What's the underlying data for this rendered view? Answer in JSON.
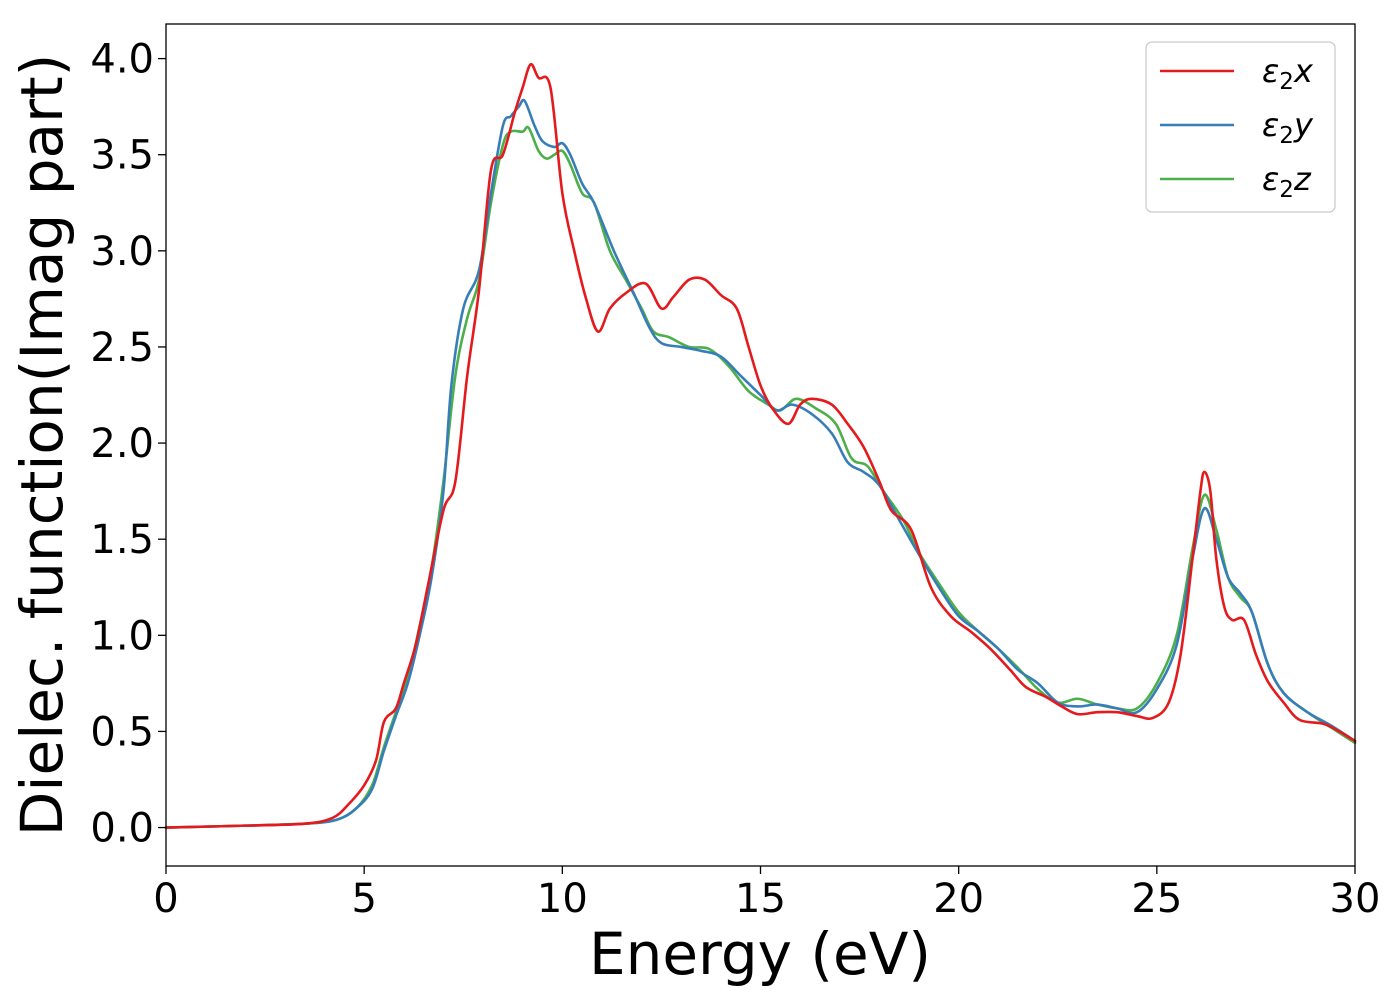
{
  "chart_data": {
    "type": "line",
    "title": "",
    "xlabel": "Energy (eV)",
    "ylabel": "Dielec. function(Imag part)",
    "xlim": [
      0,
      30
    ],
    "ylim": [
      -0.2,
      4.18
    ],
    "xticks": [
      0,
      5,
      10,
      15,
      20,
      25,
      30
    ],
    "yticks": [
      0.0,
      0.5,
      1.0,
      1.5,
      2.0,
      2.5,
      3.0,
      3.5,
      4.0
    ],
    "xtick_labels": [
      "0",
      "5",
      "10",
      "15",
      "20",
      "25",
      "30"
    ],
    "ytick_labels": [
      "0.0",
      "0.5",
      "1.0",
      "1.5",
      "2.0",
      "2.5",
      "3.0",
      "3.5",
      "4.0"
    ],
    "grid": false,
    "legend_position": "top-right",
    "series": [
      {
        "name": "ε2x",
        "color": "#e41a1c",
        "points": [
          [
            0,
            0
          ],
          [
            2,
            0.01
          ],
          [
            3.5,
            0.02
          ],
          [
            4.2,
            0.05
          ],
          [
            4.6,
            0.12
          ],
          [
            5,
            0.22
          ],
          [
            5.3,
            0.35
          ],
          [
            5.5,
            0.55
          ],
          [
            5.8,
            0.62
          ],
          [
            6,
            0.75
          ],
          [
            6.3,
            0.95
          ],
          [
            6.6,
            1.25
          ],
          [
            7,
            1.65
          ],
          [
            7.3,
            1.8
          ],
          [
            7.6,
            2.35
          ],
          [
            7.9,
            2.8
          ],
          [
            8.2,
            3.42
          ],
          [
            8.5,
            3.5
          ],
          [
            8.8,
            3.72
          ],
          [
            9,
            3.85
          ],
          [
            9.2,
            3.97
          ],
          [
            9.4,
            3.9
          ],
          [
            9.7,
            3.85
          ],
          [
            10,
            3.3
          ],
          [
            10.3,
            3.0
          ],
          [
            10.6,
            2.75
          ],
          [
            10.9,
            2.58
          ],
          [
            11.2,
            2.7
          ],
          [
            11.6,
            2.78
          ],
          [
            12.1,
            2.83
          ],
          [
            12.5,
            2.7
          ],
          [
            12.8,
            2.76
          ],
          [
            13.2,
            2.85
          ],
          [
            13.6,
            2.85
          ],
          [
            14,
            2.77
          ],
          [
            14.4,
            2.7
          ],
          [
            14.7,
            2.5
          ],
          [
            15,
            2.3
          ],
          [
            15.3,
            2.18
          ],
          [
            15.7,
            2.1
          ],
          [
            16,
            2.2
          ],
          [
            16.3,
            2.23
          ],
          [
            16.8,
            2.2
          ],
          [
            17.2,
            2.1
          ],
          [
            17.6,
            1.98
          ],
          [
            18,
            1.8
          ],
          [
            18.3,
            1.65
          ],
          [
            18.8,
            1.55
          ],
          [
            19.3,
            1.25
          ],
          [
            19.8,
            1.1
          ],
          [
            20.3,
            1.02
          ],
          [
            20.8,
            0.93
          ],
          [
            21.3,
            0.82
          ],
          [
            21.7,
            0.73
          ],
          [
            22.2,
            0.68
          ],
          [
            22.6,
            0.63
          ],
          [
            23,
            0.59
          ],
          [
            23.5,
            0.6
          ],
          [
            24,
            0.6
          ],
          [
            24.5,
            0.58
          ],
          [
            24.9,
            0.57
          ],
          [
            25.3,
            0.65
          ],
          [
            25.6,
            0.9
          ],
          [
            25.9,
            1.4
          ],
          [
            26.1,
            1.75
          ],
          [
            26.2,
            1.85
          ],
          [
            26.35,
            1.75
          ],
          [
            26.5,
            1.4
          ],
          [
            26.7,
            1.15
          ],
          [
            26.9,
            1.08
          ],
          [
            27.2,
            1.08
          ],
          [
            27.5,
            0.9
          ],
          [
            27.8,
            0.76
          ],
          [
            28.2,
            0.65
          ],
          [
            28.6,
            0.56
          ],
          [
            29.2,
            0.54
          ],
          [
            29.6,
            0.5
          ],
          [
            30,
            0.45
          ]
        ]
      },
      {
        "name": "ε2y",
        "color": "#377eb8",
        "points": [
          [
            0,
            0
          ],
          [
            2,
            0.01
          ],
          [
            3.5,
            0.02
          ],
          [
            4.3,
            0.04
          ],
          [
            4.8,
            0.1
          ],
          [
            5.2,
            0.2
          ],
          [
            5.5,
            0.4
          ],
          [
            5.8,
            0.58
          ],
          [
            6.1,
            0.75
          ],
          [
            6.4,
            1.0
          ],
          [
            6.7,
            1.3
          ],
          [
            7,
            1.75
          ],
          [
            7.2,
            2.3
          ],
          [
            7.5,
            2.7
          ],
          [
            7.9,
            2.9
          ],
          [
            8.2,
            3.3
          ],
          [
            8.5,
            3.65
          ],
          [
            8.7,
            3.7
          ],
          [
            8.9,
            3.75
          ],
          [
            9.05,
            3.78
          ],
          [
            9.3,
            3.65
          ],
          [
            9.5,
            3.57
          ],
          [
            9.8,
            3.54
          ],
          [
            10,
            3.56
          ],
          [
            10.2,
            3.5
          ],
          [
            10.5,
            3.35
          ],
          [
            10.8,
            3.25
          ],
          [
            11.3,
            3.0
          ],
          [
            11.8,
            2.78
          ],
          [
            12.2,
            2.6
          ],
          [
            12.5,
            2.52
          ],
          [
            13,
            2.5
          ],
          [
            13.5,
            2.48
          ],
          [
            14,
            2.45
          ],
          [
            14.5,
            2.35
          ],
          [
            15,
            2.25
          ],
          [
            15.4,
            2.17
          ],
          [
            15.8,
            2.2
          ],
          [
            16.3,
            2.15
          ],
          [
            16.8,
            2.05
          ],
          [
            17.2,
            1.9
          ],
          [
            17.6,
            1.85
          ],
          [
            18,
            1.78
          ],
          [
            18.5,
            1.6
          ],
          [
            19,
            1.42
          ],
          [
            19.5,
            1.25
          ],
          [
            20,
            1.1
          ],
          [
            20.5,
            1.02
          ],
          [
            21,
            0.93
          ],
          [
            21.5,
            0.82
          ],
          [
            22,
            0.75
          ],
          [
            22.5,
            0.65
          ],
          [
            23,
            0.63
          ],
          [
            23.5,
            0.64
          ],
          [
            24,
            0.62
          ],
          [
            24.5,
            0.6
          ],
          [
            25,
            0.72
          ],
          [
            25.5,
            0.95
          ],
          [
            25.9,
            1.4
          ],
          [
            26.2,
            1.66
          ],
          [
            26.5,
            1.5
          ],
          [
            26.8,
            1.3
          ],
          [
            27.1,
            1.22
          ],
          [
            27.4,
            1.12
          ],
          [
            27.8,
            0.85
          ],
          [
            28.2,
            0.7
          ],
          [
            28.8,
            0.6
          ],
          [
            29.4,
            0.53
          ],
          [
            30,
            0.45
          ]
        ]
      },
      {
        "name": "ε2z",
        "color": "#4daf4a",
        "points": [
          [
            0,
            0
          ],
          [
            2,
            0.01
          ],
          [
            3.5,
            0.02
          ],
          [
            4.3,
            0.04
          ],
          [
            4.8,
            0.1
          ],
          [
            5.2,
            0.22
          ],
          [
            5.5,
            0.42
          ],
          [
            5.8,
            0.6
          ],
          [
            6.1,
            0.78
          ],
          [
            6.4,
            1.05
          ],
          [
            6.7,
            1.35
          ],
          [
            7,
            1.8
          ],
          [
            7.3,
            2.35
          ],
          [
            7.6,
            2.65
          ],
          [
            7.9,
            2.85
          ],
          [
            8.2,
            3.25
          ],
          [
            8.5,
            3.55
          ],
          [
            8.7,
            3.62
          ],
          [
            9,
            3.62
          ],
          [
            9.15,
            3.64
          ],
          [
            9.4,
            3.52
          ],
          [
            9.6,
            3.48
          ],
          [
            9.8,
            3.5
          ],
          [
            10,
            3.52
          ],
          [
            10.2,
            3.45
          ],
          [
            10.5,
            3.3
          ],
          [
            10.8,
            3.25
          ],
          [
            11.2,
            3.0
          ],
          [
            11.6,
            2.85
          ],
          [
            12,
            2.7
          ],
          [
            12.3,
            2.58
          ],
          [
            12.7,
            2.55
          ],
          [
            13.2,
            2.5
          ],
          [
            13.7,
            2.49
          ],
          [
            14.2,
            2.4
          ],
          [
            14.7,
            2.27
          ],
          [
            15.2,
            2.2
          ],
          [
            15.5,
            2.17
          ],
          [
            15.9,
            2.23
          ],
          [
            16.4,
            2.18
          ],
          [
            16.9,
            2.1
          ],
          [
            17.3,
            1.92
          ],
          [
            17.7,
            1.88
          ],
          [
            18.1,
            1.75
          ],
          [
            18.6,
            1.6
          ],
          [
            19,
            1.43
          ],
          [
            19.5,
            1.27
          ],
          [
            20,
            1.12
          ],
          [
            20.5,
            1.02
          ],
          [
            21,
            0.93
          ],
          [
            21.5,
            0.83
          ],
          [
            22,
            0.72
          ],
          [
            22.5,
            0.65
          ],
          [
            23,
            0.67
          ],
          [
            23.5,
            0.64
          ],
          [
            24,
            0.62
          ],
          [
            24.5,
            0.62
          ],
          [
            25,
            0.75
          ],
          [
            25.5,
            1.0
          ],
          [
            25.9,
            1.45
          ],
          [
            26.2,
            1.73
          ],
          [
            26.5,
            1.55
          ],
          [
            26.8,
            1.3
          ],
          [
            27.1,
            1.2
          ],
          [
            27.4,
            1.12
          ],
          [
            27.8,
            0.85
          ],
          [
            28.2,
            0.7
          ],
          [
            28.8,
            0.6
          ],
          [
            29.4,
            0.52
          ],
          [
            30,
            0.44
          ]
        ]
      }
    ]
  }
}
